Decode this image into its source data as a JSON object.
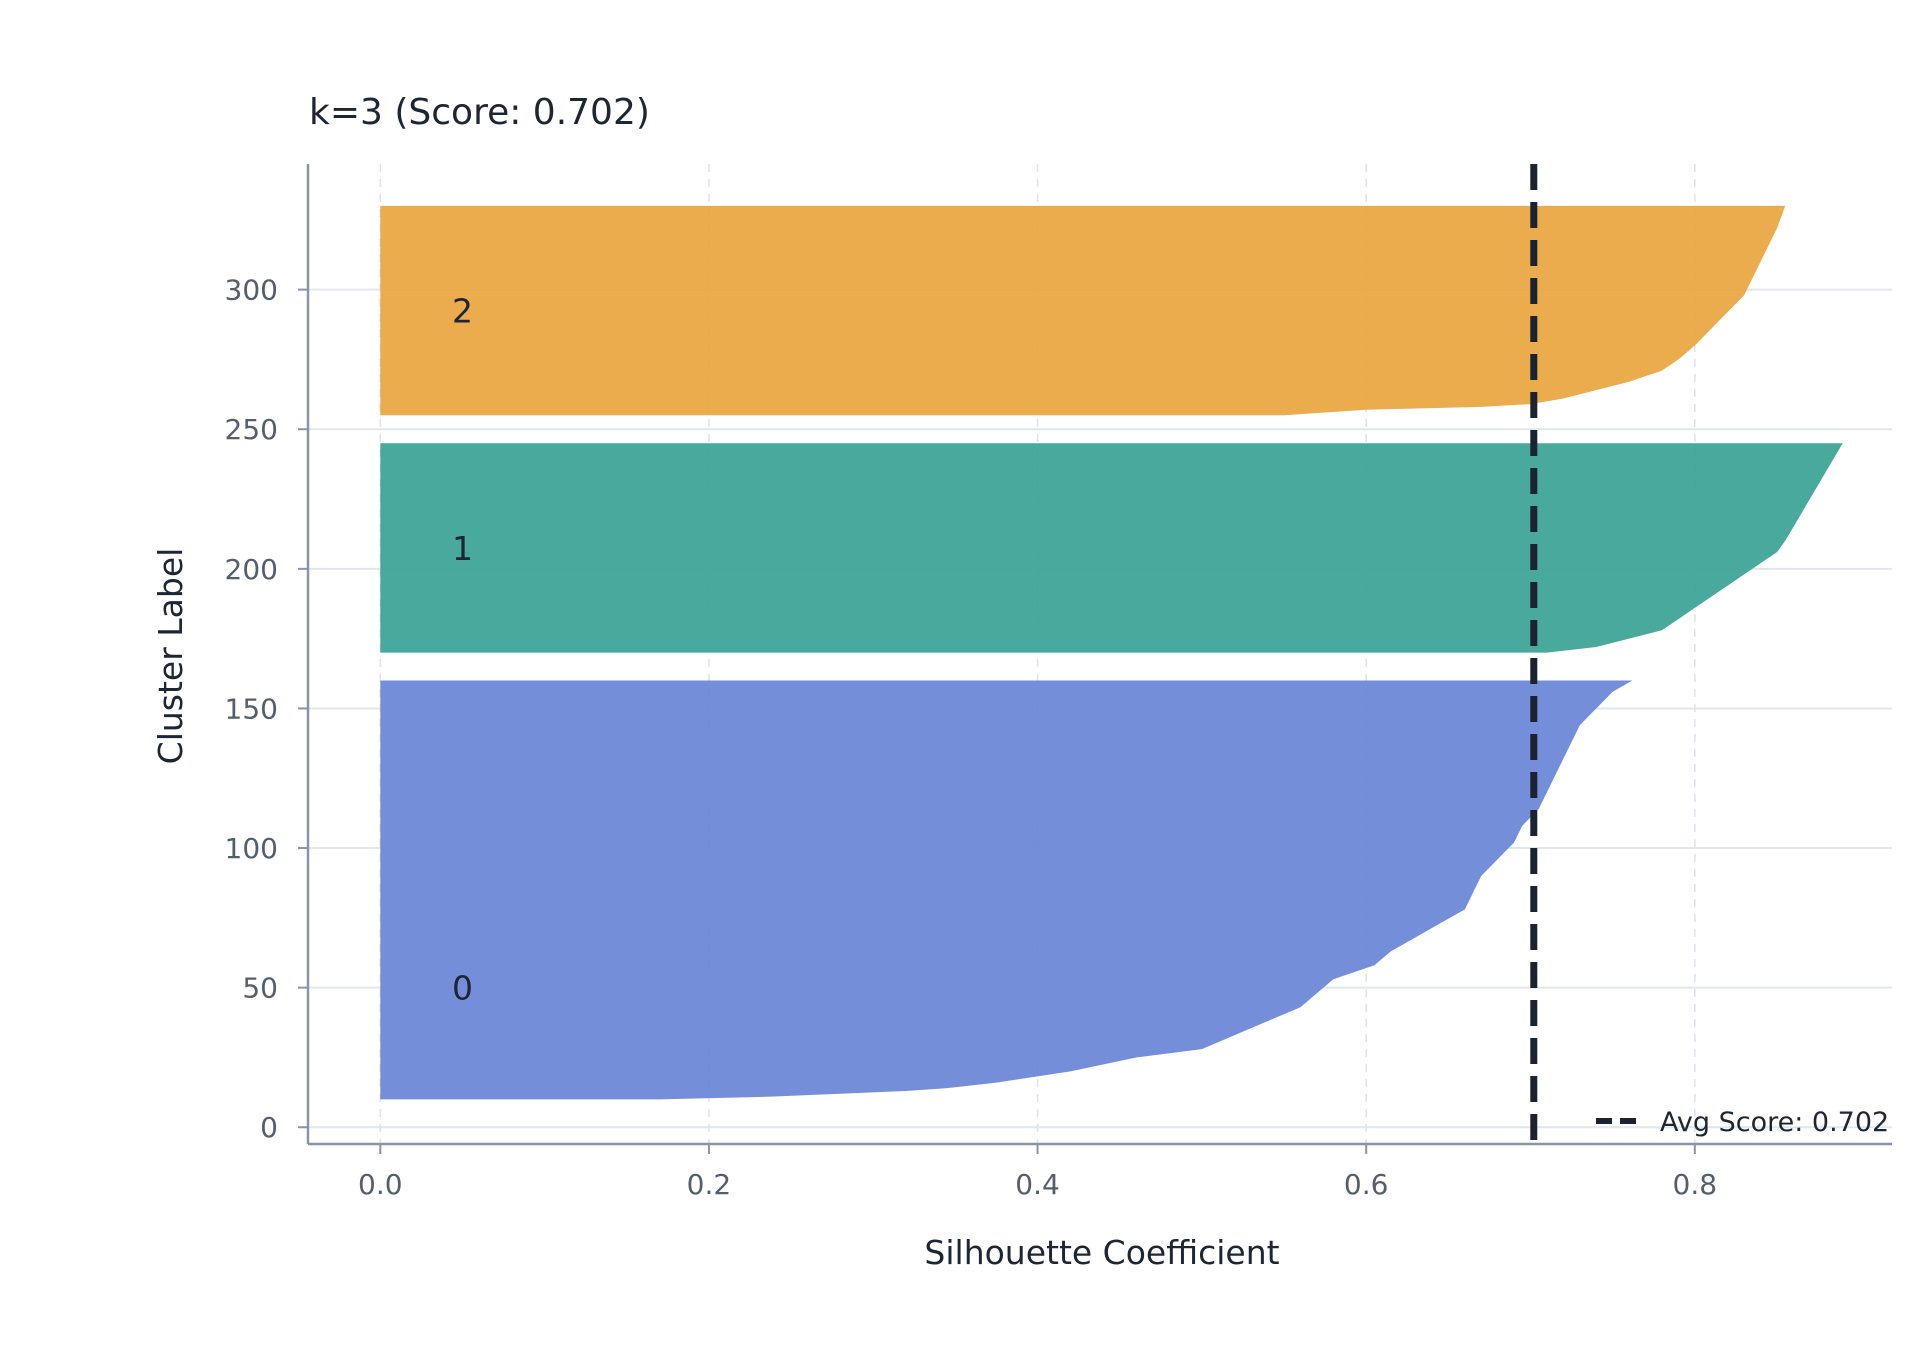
{
  "chart_data": {
    "type": "area",
    "title": "k=3 (Score: 0.702)",
    "xlabel": "Silhouette Coefficient",
    "ylabel": "Cluster Label",
    "xlim": [
      -0.044,
      0.92
    ],
    "ylim": [
      -6,
      345
    ],
    "xticks": [
      "0.0",
      "0.2",
      "0.4",
      "0.6",
      "0.8"
    ],
    "xtick_values": [
      0.0,
      0.2,
      0.4,
      0.6,
      0.8
    ],
    "yticks": [
      "0",
      "50",
      "100",
      "150",
      "200",
      "250",
      "300"
    ],
    "ytick_values": [
      0,
      50,
      100,
      150,
      200,
      250,
      300
    ],
    "grid": true,
    "legend_position": "bottom-right",
    "average_line": {
      "x": 0.702,
      "label": "Avg Score: 0.702",
      "color": "#1b2230"
    },
    "series": [
      {
        "name": "0",
        "label_text": "0",
        "color": "#6a85d6",
        "y_range": [
          10,
          160
        ],
        "profile": [
          [
            10,
            0.17
          ],
          [
            11,
            0.24
          ],
          [
            12,
            0.28
          ],
          [
            13,
            0.32
          ],
          [
            14,
            0.345
          ],
          [
            16,
            0.375
          ],
          [
            20,
            0.42
          ],
          [
            25,
            0.46
          ],
          [
            28,
            0.5
          ],
          [
            33,
            0.52
          ],
          [
            38,
            0.54
          ],
          [
            43,
            0.56
          ],
          [
            48,
            0.57
          ],
          [
            53,
            0.58
          ],
          [
            58,
            0.605
          ],
          [
            63,
            0.615
          ],
          [
            68,
            0.63
          ],
          [
            73,
            0.645
          ],
          [
            78,
            0.66
          ],
          [
            84,
            0.665
          ],
          [
            90,
            0.67
          ],
          [
            96,
            0.68
          ],
          [
            102,
            0.69
          ],
          [
            108,
            0.695
          ],
          [
            114,
            0.705
          ],
          [
            120,
            0.71
          ],
          [
            126,
            0.715
          ],
          [
            132,
            0.72
          ],
          [
            138,
            0.725
          ],
          [
            144,
            0.73
          ],
          [
            150,
            0.74
          ],
          [
            156,
            0.75
          ],
          [
            160,
            0.762
          ]
        ]
      },
      {
        "name": "1",
        "label_text": "1",
        "color": "#3ba294",
        "y_range": [
          170,
          245
        ],
        "profile": [
          [
            170,
            0.71
          ],
          [
            172,
            0.74
          ],
          [
            175,
            0.76
          ],
          [
            178,
            0.78
          ],
          [
            182,
            0.79
          ],
          [
            186,
            0.8
          ],
          [
            190,
            0.81
          ],
          [
            194,
            0.82
          ],
          [
            198,
            0.83
          ],
          [
            202,
            0.84
          ],
          [
            206,
            0.85
          ],
          [
            210,
            0.855
          ],
          [
            215,
            0.86
          ],
          [
            220,
            0.865
          ],
          [
            225,
            0.87
          ],
          [
            230,
            0.875
          ],
          [
            235,
            0.88
          ],
          [
            240,
            0.885
          ],
          [
            245,
            0.89
          ]
        ]
      },
      {
        "name": "2",
        "label_text": "2",
        "color": "#e8a63f",
        "y_range": [
          255,
          330
        ],
        "profile": [
          [
            255,
            0.55
          ],
          [
            257,
            0.6
          ],
          [
            258,
            0.67
          ],
          [
            259,
            0.7
          ],
          [
            261,
            0.72
          ],
          [
            264,
            0.74
          ],
          [
            267,
            0.76
          ],
          [
            271,
            0.78
          ],
          [
            275,
            0.79
          ],
          [
            280,
            0.8
          ],
          [
            286,
            0.81
          ],
          [
            292,
            0.82
          ],
          [
            298,
            0.83
          ],
          [
            304,
            0.835
          ],
          [
            310,
            0.84
          ],
          [
            316,
            0.845
          ],
          [
            322,
            0.85
          ],
          [
            330,
            0.855
          ]
        ]
      }
    ]
  }
}
